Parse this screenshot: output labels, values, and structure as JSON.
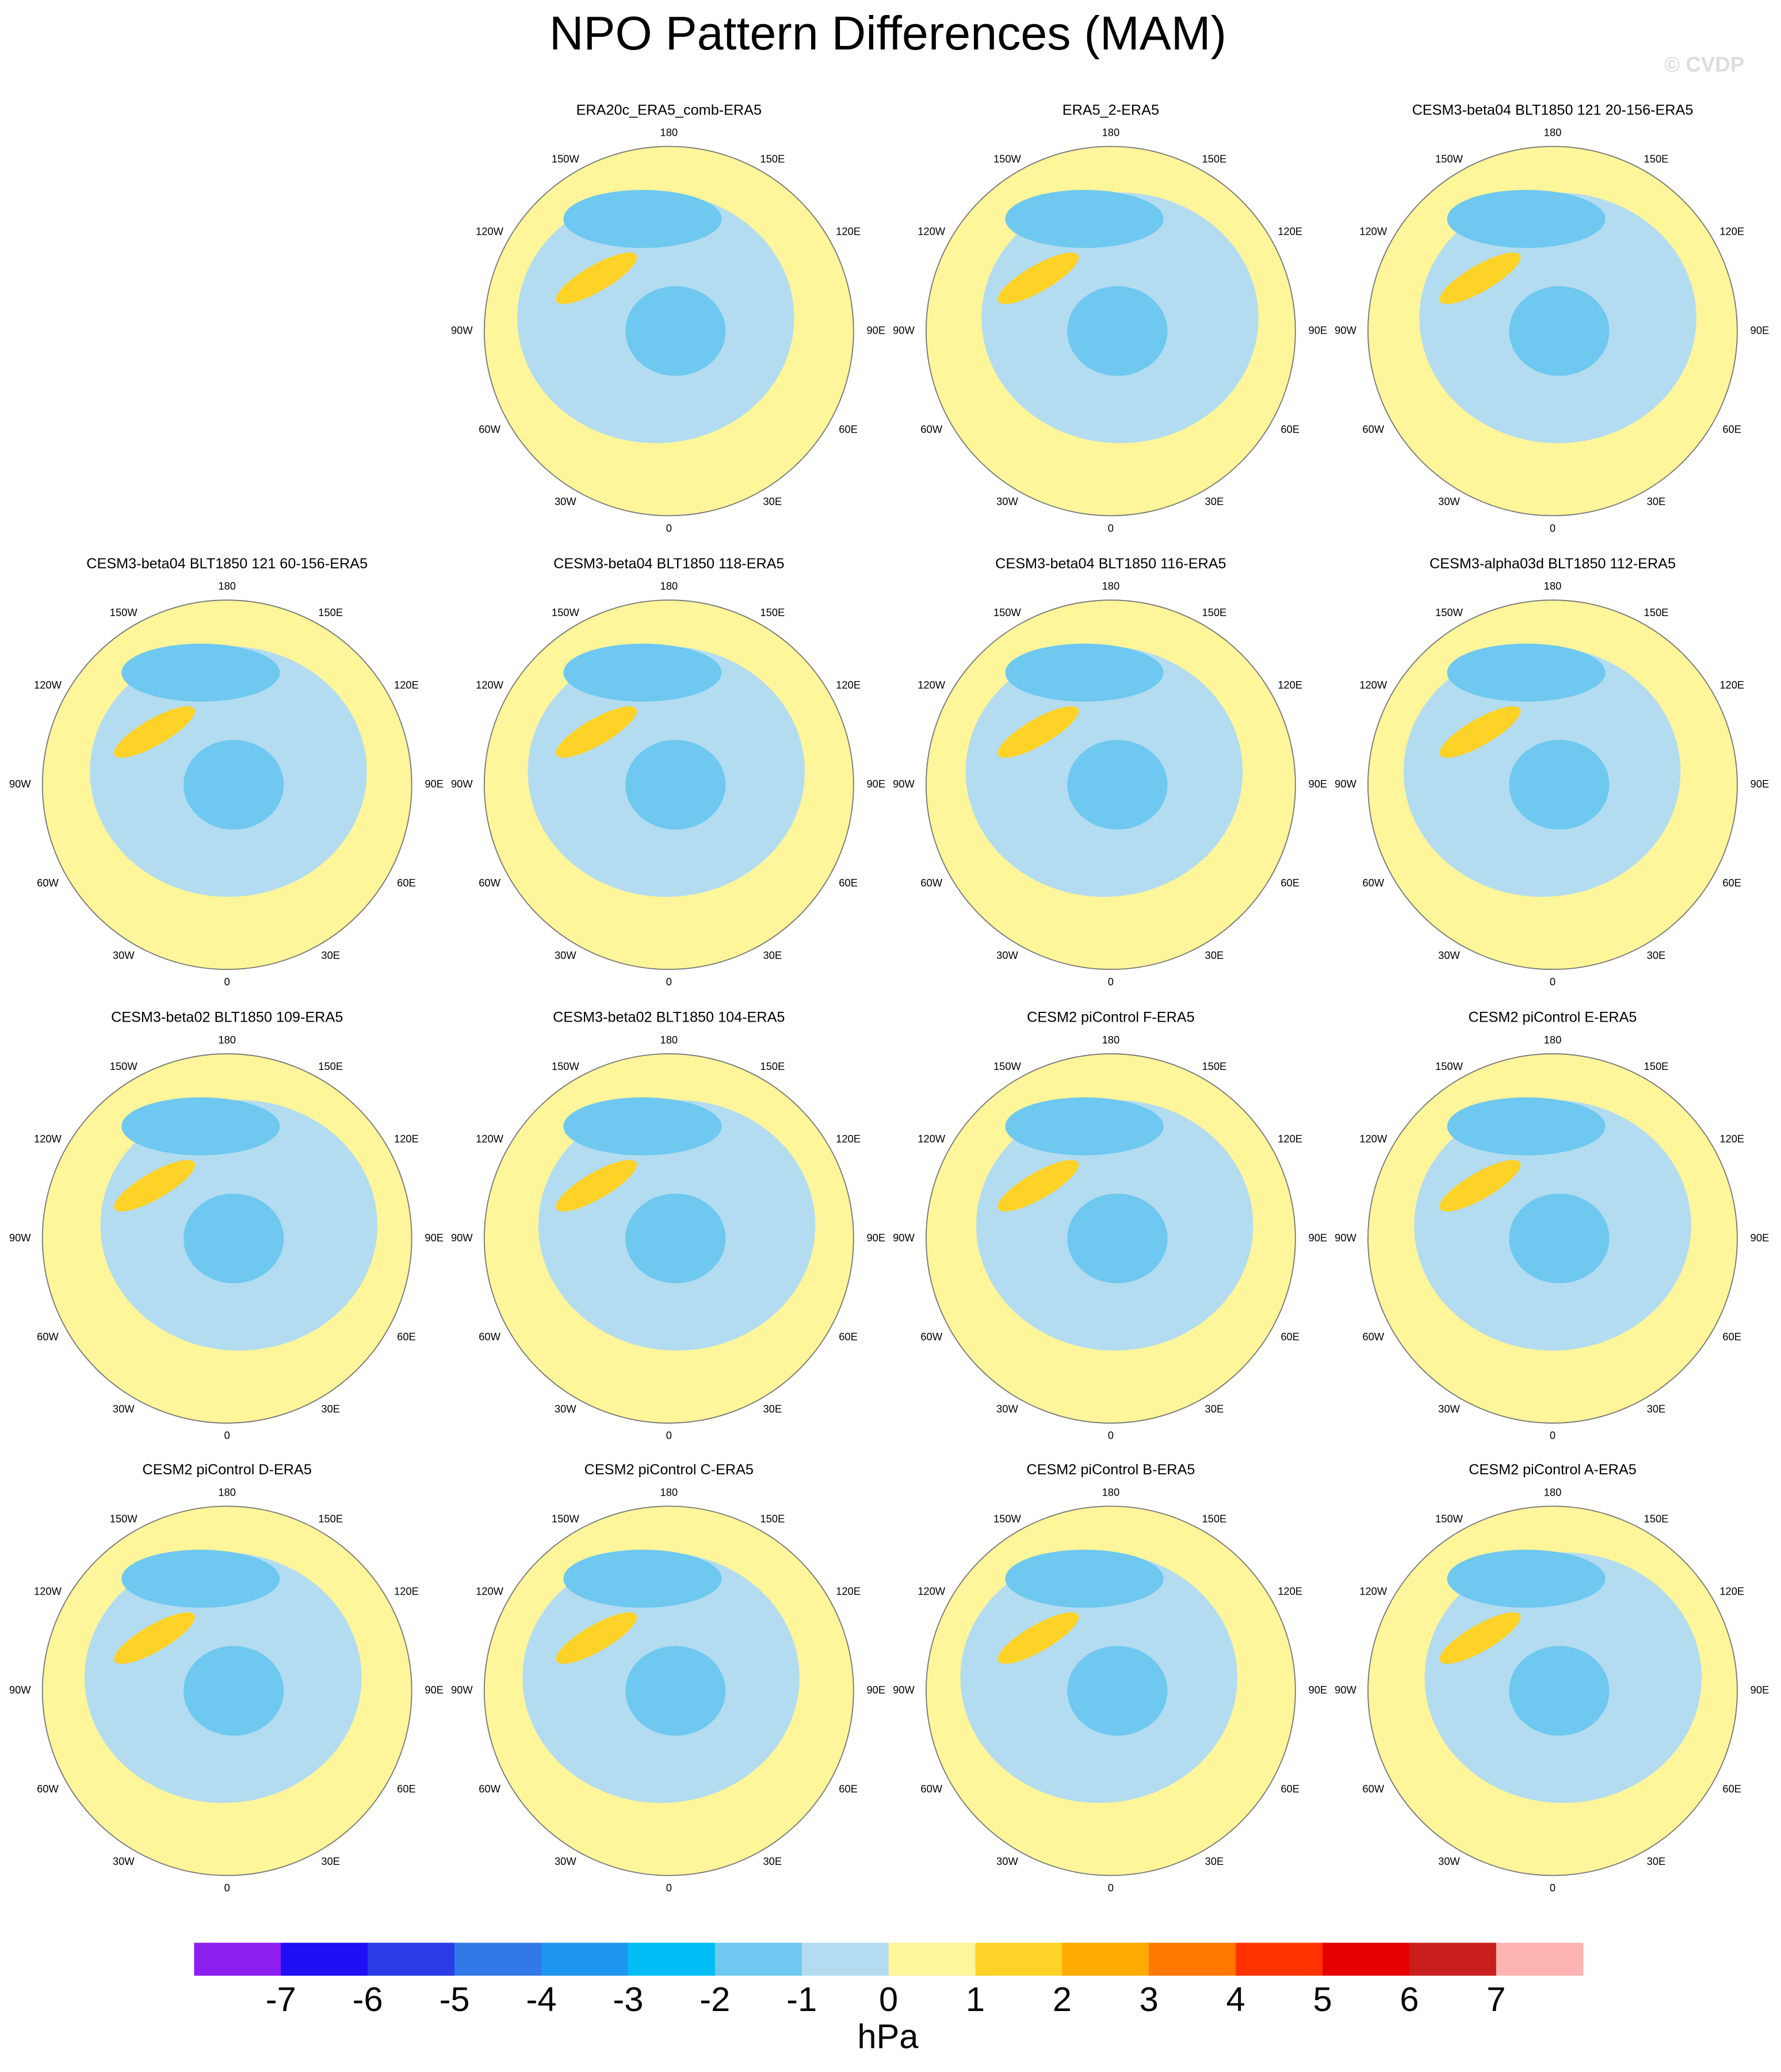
{
  "title": "NPO Pattern Differences (MAM)",
  "watermark": "© CVDP",
  "panels": [
    {
      "title": "ERA20c_ERA5_comb-ERA5"
    },
    {
      "title": "ERA5_2-ERA5"
    },
    {
      "title": "CESM3-beta04 BLT1850 121 20-156-ERA5"
    },
    {
      "title": "CESM3-beta04 BLT1850 121 60-156-ERA5"
    },
    {
      "title": "CESM3-beta04 BLT1850 118-ERA5"
    },
    {
      "title": "CESM3-beta04 BLT1850 116-ERA5"
    },
    {
      "title": "CESM3-alpha03d BLT1850 112-ERA5"
    },
    {
      "title": "CESM3-beta02 BLT1850 109-ERA5"
    },
    {
      "title": "CESM3-beta02 BLT1850 104-ERA5"
    },
    {
      "title": "CESM2 piControl F-ERA5"
    },
    {
      "title": "CESM2 piControl E-ERA5"
    },
    {
      "title": "CESM2 piControl D-ERA5"
    },
    {
      "title": "CESM2 piControl C-ERA5"
    },
    {
      "title": "CESM2 piControl B-ERA5"
    },
    {
      "title": "CESM2 piControl A-ERA5"
    }
  ],
  "longitude_labels": [
    "180",
    "150E",
    "120E",
    "90E",
    "60E",
    "30E",
    "0",
    "30W",
    "60W",
    "90W",
    "120W",
    "150W"
  ],
  "colorbar": {
    "colors": [
      "#8c1ef0",
      "#1e0ff5",
      "#2a3ce6",
      "#3278e8",
      "#1e96f0",
      "#00bef5",
      "#6ec8f0",
      "#b3dcf0",
      "#fff59b",
      "#ffd228",
      "#ffaa00",
      "#ff7800",
      "#ff3200",
      "#e60000",
      "#c81e1e",
      "#ffb4b4"
    ],
    "ticks": [
      -7,
      -6,
      -5,
      -4,
      -3,
      -2,
      -1,
      0,
      1,
      2,
      3,
      4,
      5,
      6,
      7
    ],
    "label": "hPa"
  }
}
